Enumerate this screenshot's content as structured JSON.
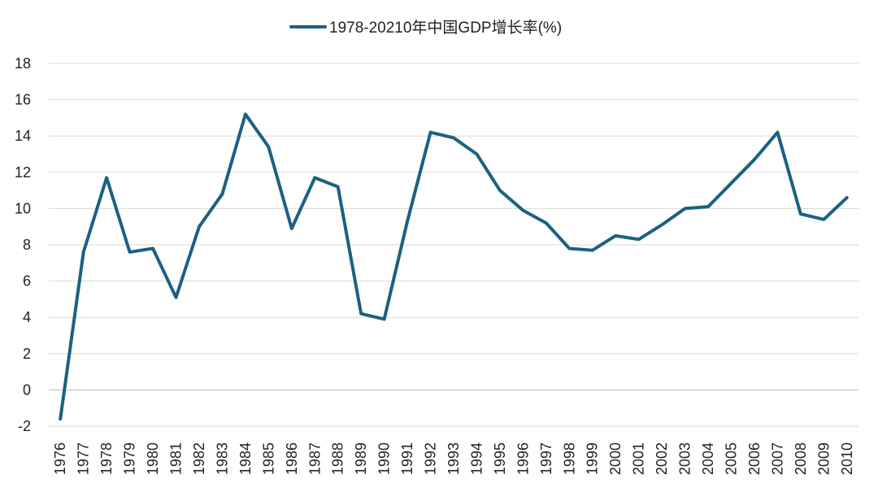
{
  "chart_data": {
    "type": "line",
    "title": "",
    "xlabel": "",
    "ylabel": "",
    "ylim": [
      -2,
      18
    ],
    "yticks": [
      -2,
      0,
      2,
      4,
      6,
      8,
      10,
      12,
      14,
      16,
      18
    ],
    "grid": true,
    "legend_position": "top-center",
    "x": [
      "1976",
      "1977",
      "1978",
      "1979",
      "1980",
      "1981",
      "1982",
      "1983",
      "1984",
      "1985",
      "1986",
      "1987",
      "1988",
      "1989",
      "1990",
      "1991",
      "1992",
      "1993",
      "1994",
      "1995",
      "1996",
      "1997",
      "1998",
      "1999",
      "2000",
      "2001",
      "2002",
      "2003",
      "2004",
      "2005",
      "2006",
      "2007",
      "2008",
      "2009",
      "2010"
    ],
    "series": [
      {
        "name": "1978-20210年中国GDP增长率(%)",
        "color": "#1b6183",
        "values": [
          -1.6,
          7.6,
          11.7,
          7.6,
          7.8,
          5.1,
          9.0,
          10.8,
          15.2,
          13.4,
          8.9,
          11.7,
          11.2,
          4.2,
          3.9,
          9.3,
          14.2,
          13.9,
          13.0,
          11.0,
          9.9,
          9.2,
          7.8,
          7.7,
          8.5,
          8.3,
          9.1,
          10.0,
          10.1,
          11.4,
          12.7,
          14.2,
          9.7,
          9.4,
          10.6
        ]
      }
    ]
  }
}
